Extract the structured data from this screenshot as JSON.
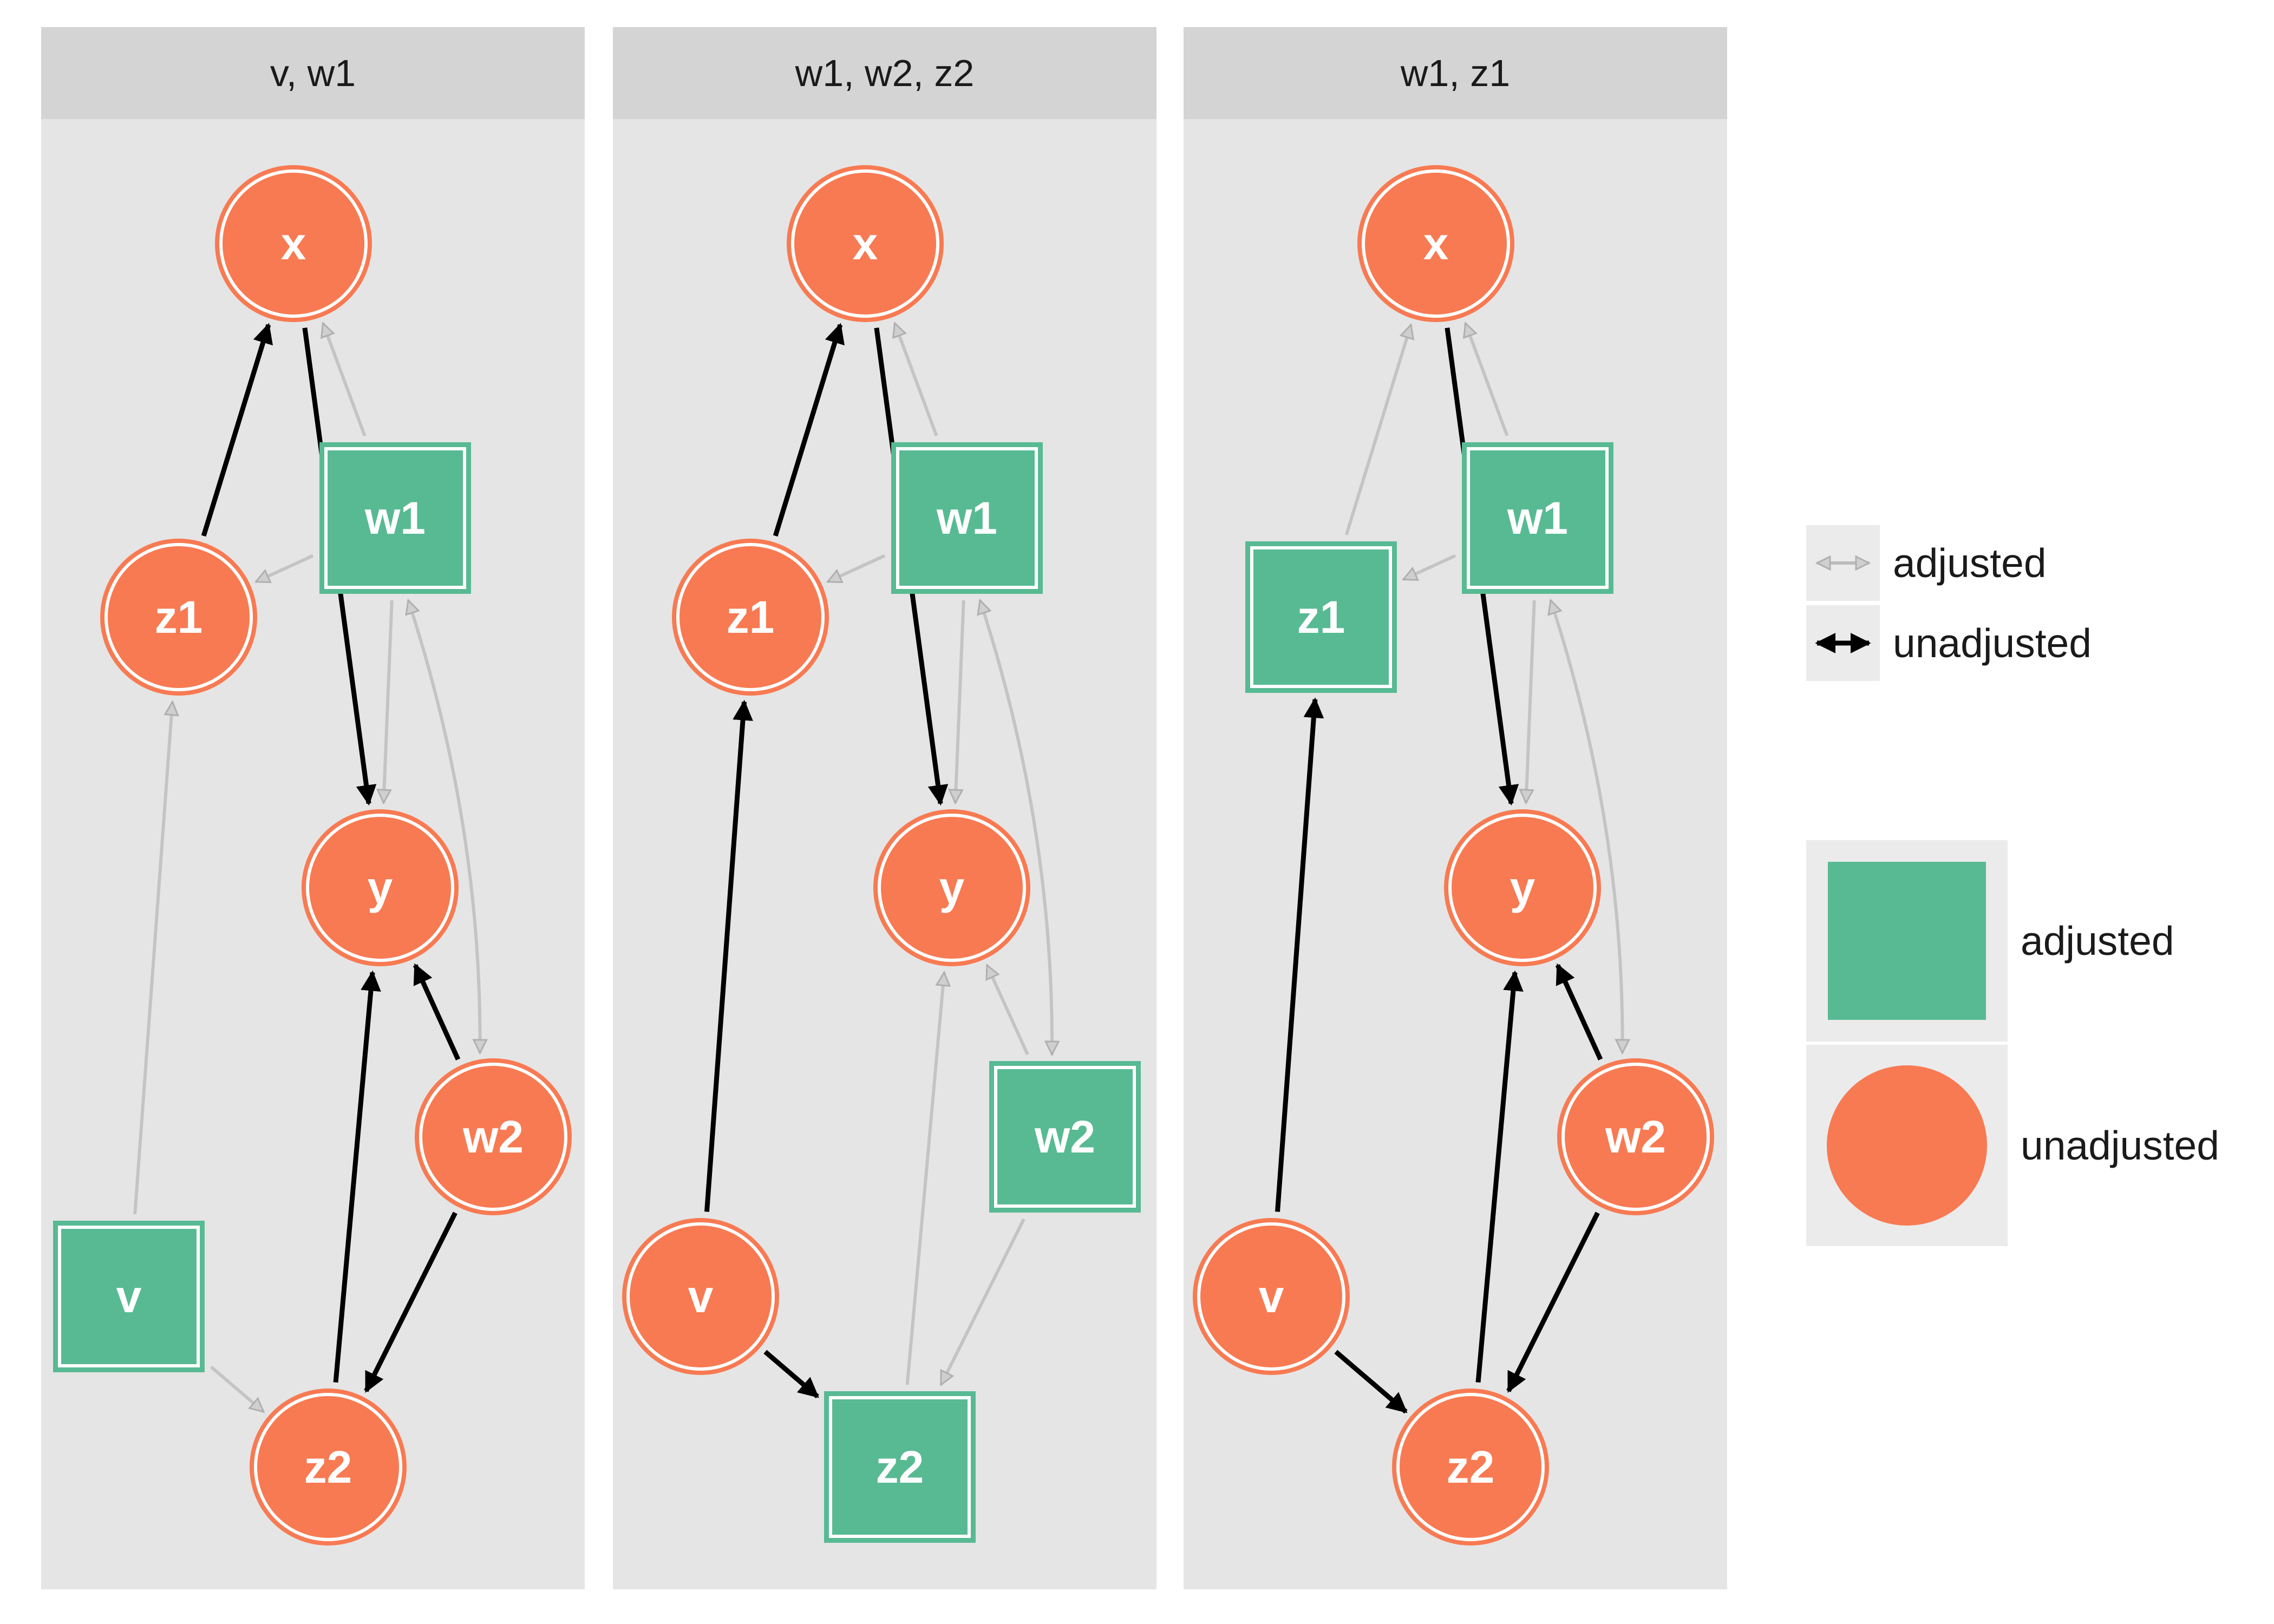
{
  "colors": {
    "panel_bg": "#e5e5e5",
    "strip_bg": "#d4d4d4",
    "unadjusted_fill": "#f87a52",
    "adjusted_fill": "#58ba93",
    "unadjusted_edge": "#000000",
    "adjusted_edge": "#bcbcbc",
    "legend_key_bg": "#ebebeb"
  },
  "panels": [
    {
      "title": "v, w1",
      "nodes": [
        {
          "id": "x",
          "label": "x",
          "status": "unadjusted"
        },
        {
          "id": "w1",
          "label": "w1",
          "status": "adjusted"
        },
        {
          "id": "z1",
          "label": "z1",
          "status": "unadjusted"
        },
        {
          "id": "y",
          "label": "y",
          "status": "unadjusted"
        },
        {
          "id": "w2",
          "label": "w2",
          "status": "unadjusted"
        },
        {
          "id": "v",
          "label": "v",
          "status": "adjusted"
        },
        {
          "id": "z2",
          "label": "z2",
          "status": "unadjusted"
        }
      ],
      "edges": [
        {
          "from": "z1",
          "to": "x",
          "status": "unadjusted"
        },
        {
          "from": "x",
          "to": "y",
          "status": "unadjusted"
        },
        {
          "from": "w1",
          "to": "x",
          "status": "adjusted"
        },
        {
          "from": "w1",
          "to": "z1",
          "status": "adjusted"
        },
        {
          "from": "w1",
          "to": "y",
          "status": "adjusted"
        },
        {
          "from": "w1",
          "to": "w2",
          "status": "adjusted",
          "bidirected": true
        },
        {
          "from": "v",
          "to": "z1",
          "status": "adjusted"
        },
        {
          "from": "v",
          "to": "z2",
          "status": "adjusted"
        },
        {
          "from": "z2",
          "to": "y",
          "status": "unadjusted"
        },
        {
          "from": "w2",
          "to": "y",
          "status": "unadjusted"
        },
        {
          "from": "w2",
          "to": "z2",
          "status": "unadjusted"
        }
      ]
    },
    {
      "title": "w1, w2, z2",
      "nodes": [
        {
          "id": "x",
          "label": "x",
          "status": "unadjusted"
        },
        {
          "id": "w1",
          "label": "w1",
          "status": "adjusted"
        },
        {
          "id": "z1",
          "label": "z1",
          "status": "unadjusted"
        },
        {
          "id": "y",
          "label": "y",
          "status": "unadjusted"
        },
        {
          "id": "w2",
          "label": "w2",
          "status": "adjusted"
        },
        {
          "id": "v",
          "label": "v",
          "status": "unadjusted"
        },
        {
          "id": "z2",
          "label": "z2",
          "status": "adjusted"
        }
      ],
      "edges": [
        {
          "from": "z1",
          "to": "x",
          "status": "unadjusted"
        },
        {
          "from": "x",
          "to": "y",
          "status": "unadjusted"
        },
        {
          "from": "w1",
          "to": "x",
          "status": "adjusted"
        },
        {
          "from": "w1",
          "to": "z1",
          "status": "adjusted"
        },
        {
          "from": "w1",
          "to": "y",
          "status": "adjusted"
        },
        {
          "from": "w1",
          "to": "w2",
          "status": "adjusted",
          "bidirected": true
        },
        {
          "from": "v",
          "to": "z1",
          "status": "unadjusted"
        },
        {
          "from": "v",
          "to": "z2",
          "status": "unadjusted"
        },
        {
          "from": "z2",
          "to": "y",
          "status": "adjusted"
        },
        {
          "from": "w2",
          "to": "y",
          "status": "adjusted"
        },
        {
          "from": "w2",
          "to": "z2",
          "status": "adjusted"
        }
      ]
    },
    {
      "title": "w1, z1",
      "nodes": [
        {
          "id": "x",
          "label": "x",
          "status": "unadjusted"
        },
        {
          "id": "w1",
          "label": "w1",
          "status": "adjusted"
        },
        {
          "id": "z1",
          "label": "z1",
          "status": "adjusted"
        },
        {
          "id": "y",
          "label": "y",
          "status": "unadjusted"
        },
        {
          "id": "w2",
          "label": "w2",
          "status": "unadjusted"
        },
        {
          "id": "v",
          "label": "v",
          "status": "unadjusted"
        },
        {
          "id": "z2",
          "label": "z2",
          "status": "unadjusted"
        }
      ],
      "edges": [
        {
          "from": "z1",
          "to": "x",
          "status": "adjusted"
        },
        {
          "from": "x",
          "to": "y",
          "status": "unadjusted"
        },
        {
          "from": "w1",
          "to": "x",
          "status": "adjusted"
        },
        {
          "from": "w1",
          "to": "z1",
          "status": "adjusted"
        },
        {
          "from": "w1",
          "to": "y",
          "status": "adjusted"
        },
        {
          "from": "w1",
          "to": "w2",
          "status": "adjusted",
          "bidirected": true
        },
        {
          "from": "v",
          "to": "z1",
          "status": "unadjusted"
        },
        {
          "from": "v",
          "to": "z2",
          "status": "unadjusted"
        },
        {
          "from": "z2",
          "to": "y",
          "status": "unadjusted"
        },
        {
          "from": "w2",
          "to": "y",
          "status": "unadjusted"
        },
        {
          "from": "w2",
          "to": "z2",
          "status": "unadjusted"
        }
      ]
    }
  ],
  "legend": {
    "edges": [
      {
        "label": "adjusted",
        "status": "adjusted"
      },
      {
        "label": "unadjusted",
        "status": "unadjusted"
      }
    ],
    "nodes": [
      {
        "label": "adjusted",
        "status": "adjusted"
      },
      {
        "label": "unadjusted",
        "status": "unadjusted"
      }
    ]
  }
}
